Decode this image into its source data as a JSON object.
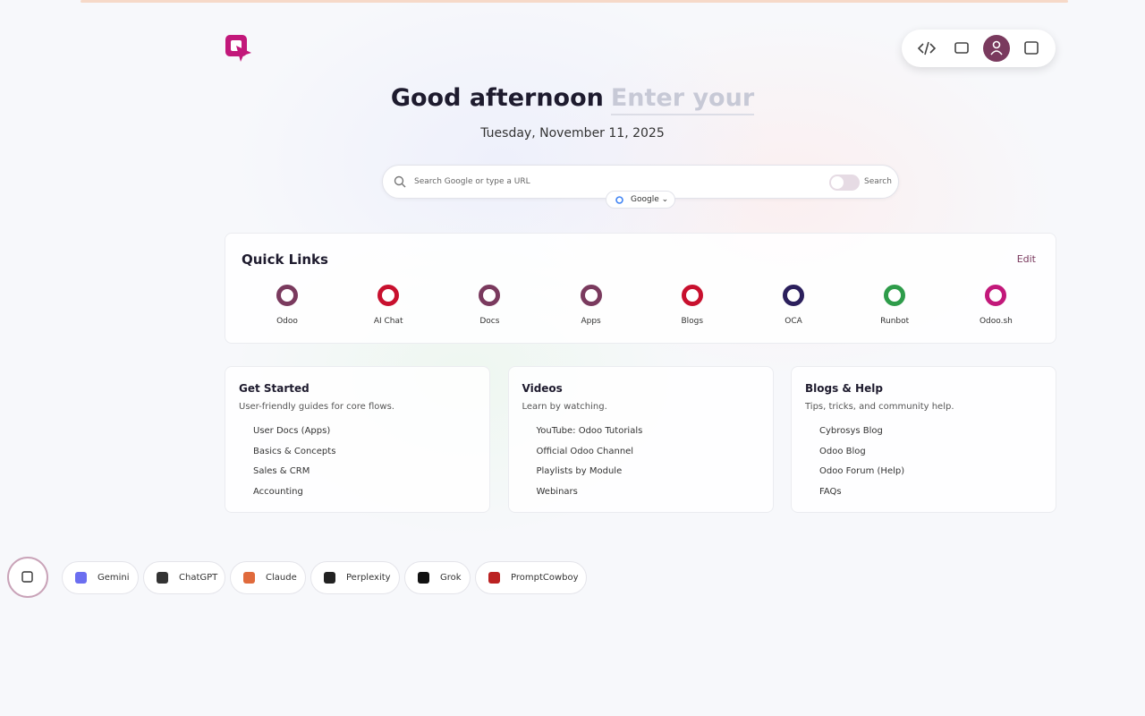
{
  "header": {
    "greeting": "Good afternoon",
    "name_placeholder": "Enter your",
    "date": "Tuesday, November 11, 2025"
  },
  "search": {
    "placeholder": "Search Google or type a URL",
    "toggle_label": "Search",
    "engine": "Google"
  },
  "quick_links": {
    "title": "Quick Links",
    "edit": "Edit",
    "links": [
      "Odoo",
      "AI Chat",
      "Docs",
      "Apps",
      "Blogs",
      "OCA",
      "Runbot",
      "Odoo.sh"
    ]
  },
  "cards": [
    {
      "title": "Get Started",
      "subtitle": "User-friendly guides for core flows.",
      "items": [
        "User Docs (Apps)",
        "Basics & Concepts",
        "Sales & CRM",
        "Accounting"
      ]
    },
    {
      "title": "Videos",
      "subtitle": "Learn by watching.",
      "items": [
        "YouTube: Odoo Tutorials",
        "Official Odoo Channel",
        "Playlists by Module",
        "Webinars"
      ]
    },
    {
      "title": "Blogs & Help",
      "subtitle": "Tips, tricks, and community help.",
      "items": [
        "Cybrosys Blog",
        "Odoo Blog",
        "Odoo Forum (Help)",
        "FAQs"
      ]
    }
  ],
  "ai_tools": [
    "Gemini",
    "ChatGPT",
    "Claude",
    "Perplexity",
    "Grok",
    "PromptCowboy"
  ]
}
